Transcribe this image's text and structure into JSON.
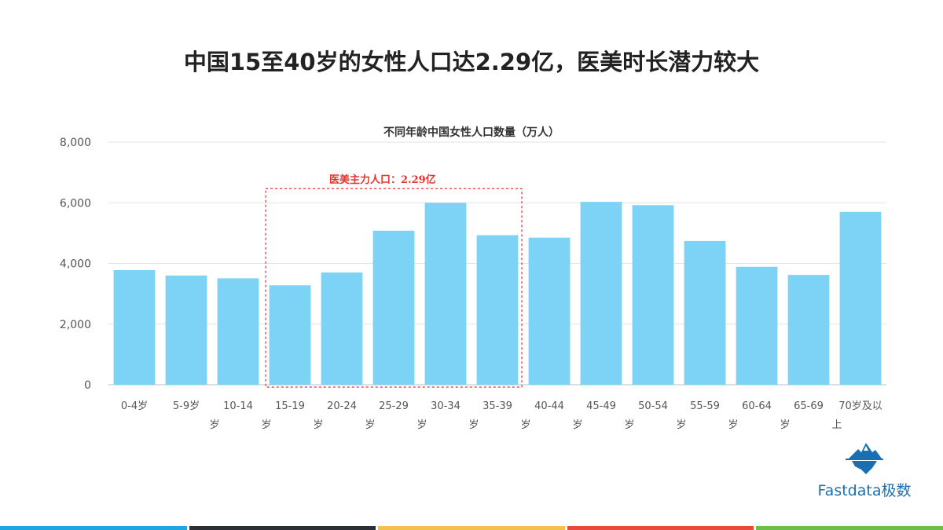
{
  "page": {
    "title": "中国15至40岁的女性人口达2.29亿，医美时长潜力较大"
  },
  "logo": {
    "text": "Fastdata极数",
    "icon": "iceberg-icon"
  },
  "bottom_bar_colors": [
    "#1ea6e0",
    "#2b2f36",
    "#f3c04a",
    "#e8493a",
    "#6cc04a"
  ],
  "colors": {
    "bar": "#7dd3f5",
    "annotation": "#e8322d",
    "axis_text": "#555555",
    "grid": "#e3e3e3"
  },
  "chart_data": {
    "type": "bar",
    "title": "不同年龄中国女性人口数量（万人）",
    "categories": [
      "0-4岁",
      "5-9岁",
      "10-14岁",
      "15-19岁",
      "20-24岁",
      "25-29岁",
      "30-34岁",
      "35-39岁",
      "40-44岁",
      "45-49岁",
      "50-54岁",
      "55-59岁",
      "60-64岁",
      "65-69岁",
      "70岁及以上"
    ],
    "values": [
      3780,
      3600,
      3510,
      3280,
      3700,
      5080,
      6000,
      4930,
      4850,
      6030,
      5920,
      4740,
      3890,
      3620,
      5700
    ],
    "ylim": [
      0,
      8000
    ],
    "yticks": [
      0,
      2000,
      4000,
      6000,
      8000
    ],
    "ytick_labels": [
      "0",
      "2,000",
      "4,000",
      "6,000",
      "8,000"
    ],
    "xlabel": "",
    "ylabel": "",
    "grid": true,
    "annotation": {
      "text": "医美主力人口：2.29亿",
      "from_category": "15-19岁",
      "to_category": "35-39岁",
      "style": "dashed-box"
    }
  }
}
